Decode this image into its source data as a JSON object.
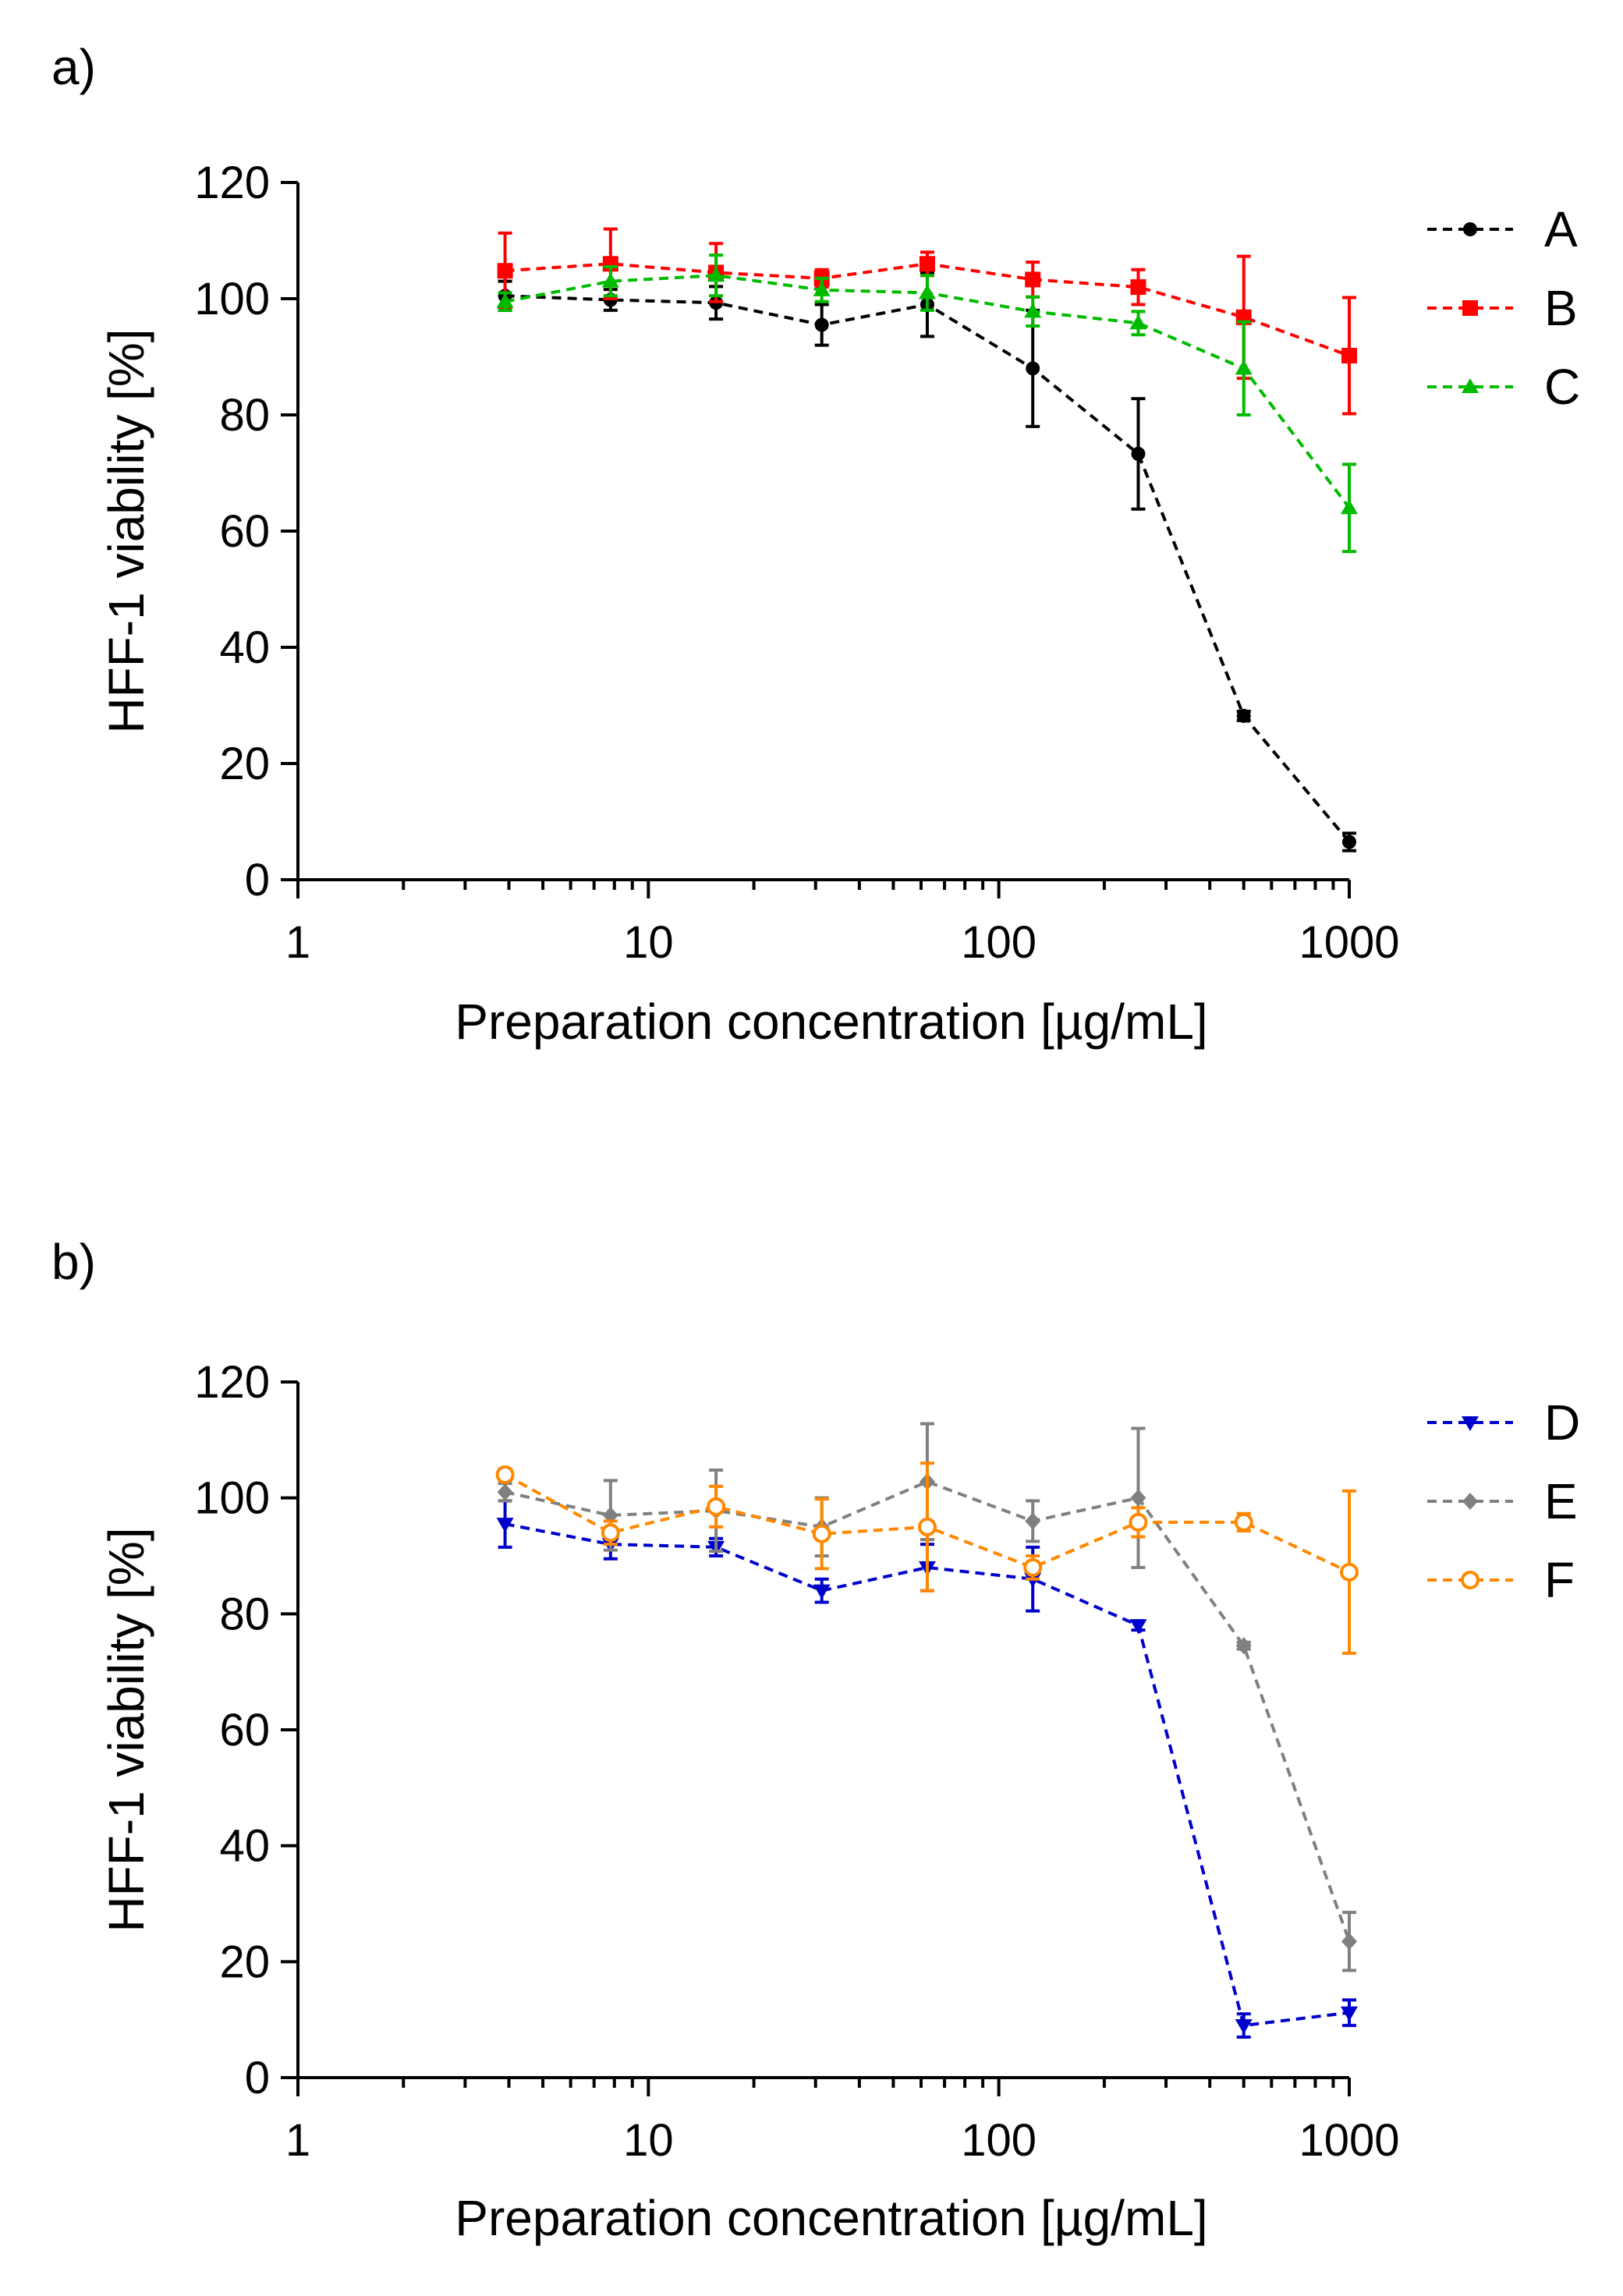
{
  "colors": {
    "A": "#000000",
    "B": "#ff0000",
    "C": "#00bb00",
    "D": "#0000cc",
    "E": "#808080",
    "F": "#ff8800"
  },
  "chart_data": [
    {
      "type": "line",
      "panel_label": "a)",
      "xscale": "log",
      "xlim": [
        1,
        1000
      ],
      "ylim": [
        0,
        120
      ],
      "xticks": [
        1,
        10,
        100,
        1000
      ],
      "xtick_labels": [
        "1",
        "10",
        "100",
        "1000"
      ],
      "yticks": [
        0,
        20,
        40,
        60,
        80,
        100,
        120
      ],
      "ytick_labels": [
        "0",
        "20",
        "40",
        "60",
        "80",
        "100",
        "120"
      ],
      "xlabel": "Preparation concentration [µg/mL]",
      "ylabel": "HFF-1 viability [%]",
      "legend_position": "top-right",
      "series": [
        {
          "name": "A",
          "color": "#000000",
          "marker": "circle",
          "x": [
            3.9,
            7.8,
            15.6,
            31.25,
            62.5,
            125,
            250,
            500,
            1000
          ],
          "y": [
            100.5,
            99.8,
            99.3,
            95.5,
            99.0,
            88.0,
            73.3,
            28.2,
            6.5
          ],
          "err": [
            2.5,
            1.8,
            2.8,
            3.5,
            5.5,
            10.0,
            9.5,
            0.8,
            1.5
          ]
        },
        {
          "name": "B",
          "color": "#ff0000",
          "marker": "square",
          "x": [
            3.9,
            7.8,
            15.6,
            31.25,
            62.5,
            125,
            250,
            500,
            1000
          ],
          "y": [
            104.8,
            106.0,
            104.5,
            103.5,
            106.0,
            103.3,
            102.0,
            96.8,
            90.2
          ],
          "err": [
            6.5,
            6.0,
            5.0,
            1.5,
            2.0,
            3.0,
            3.0,
            10.5,
            10.0
          ]
        },
        {
          "name": "C",
          "color": "#00bb00",
          "marker": "triangle-up",
          "x": [
            3.9,
            7.8,
            15.6,
            31.25,
            62.5,
            125,
            250,
            500,
            1000
          ],
          "y": [
            99.5,
            103.0,
            104.0,
            101.5,
            101.0,
            97.8,
            95.8,
            88.0,
            64.0
          ],
          "err": [
            1.5,
            2.5,
            3.5,
            2.0,
            3.0,
            2.5,
            2.0,
            8.0,
            7.5
          ]
        }
      ]
    },
    {
      "type": "line",
      "panel_label": "b)",
      "xscale": "log",
      "xlim": [
        1,
        1000
      ],
      "ylim": [
        0,
        120
      ],
      "xticks": [
        1,
        10,
        100,
        1000
      ],
      "xtick_labels": [
        "1",
        "10",
        "100",
        "1000"
      ],
      "yticks": [
        0,
        20,
        40,
        60,
        80,
        100,
        120
      ],
      "ytick_labels": [
        "0",
        "20",
        "40",
        "60",
        "80",
        "100",
        "120"
      ],
      "xlabel": "Preparation concentration [µg/mL]",
      "ylabel": "HFF-1 viability [%]",
      "legend_position": "top-right",
      "series": [
        {
          "name": "D",
          "color": "#0000cc",
          "marker": "triangle-down",
          "x": [
            3.9,
            7.8,
            15.6,
            31.25,
            62.5,
            125,
            250,
            500,
            1000
          ],
          "y": [
            95.5,
            92.0,
            91.5,
            84.0,
            88.0,
            86.0,
            78.0,
            9.0,
            11.2
          ],
          "err": [
            4.0,
            2.5,
            1.5,
            2.0,
            4.0,
            5.5,
            0.8,
            2.0,
            2.2
          ]
        },
        {
          "name": "E",
          "color": "#808080",
          "marker": "diamond",
          "x": [
            3.9,
            7.8,
            15.6,
            31.25,
            62.5,
            125,
            250,
            500,
            1000
          ],
          "y": [
            101.0,
            97.0,
            97.8,
            95.0,
            102.8,
            96.0,
            100.0,
            74.5,
            23.5
          ],
          "err": [
            1.5,
            6.0,
            7.0,
            5.0,
            10.0,
            3.5,
            12.0,
            0.6,
            5.0
          ]
        },
        {
          "name": "F",
          "color": "#ff8800",
          "marker": "circle-open",
          "x": [
            3.9,
            7.8,
            15.6,
            31.25,
            62.5,
            125,
            250,
            500,
            1000
          ],
          "y": [
            104.0,
            94.0,
            98.5,
            93.8,
            95.0,
            88.0,
            95.8,
            95.8,
            87.2
          ],
          "err": [
            1.0,
            2.0,
            3.5,
            6.0,
            11.0,
            2.0,
            2.5,
            1.5,
            14.0
          ]
        }
      ]
    }
  ]
}
